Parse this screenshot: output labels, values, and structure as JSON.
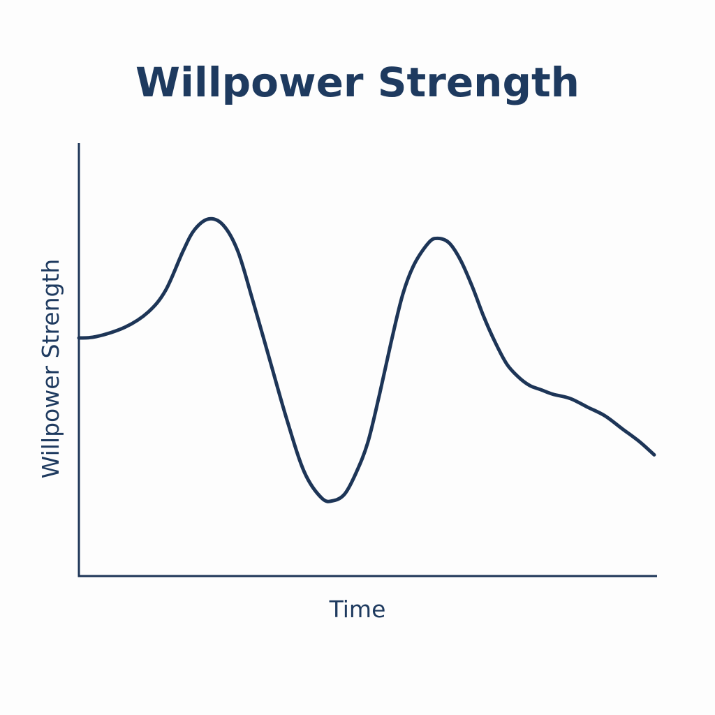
{
  "chart_data": {
    "type": "line",
    "title": "Willpower Strength",
    "xlabel": "Time",
    "ylabel": "Willpower Strength",
    "xlim": [
      0,
      100
    ],
    "ylim": [
      0,
      100
    ],
    "grid": false,
    "ticks_shown": false,
    "series": [
      {
        "x": [
          0,
          3,
          8,
          12,
          15,
          18,
          20,
          22.5,
          25,
          27.5,
          30,
          33,
          36,
          39,
          42,
          44,
          46,
          48,
          50,
          52,
          54,
          56,
          58,
          60.5,
          62,
          64,
          66,
          68,
          70,
          72,
          74,
          76,
          78,
          80,
          82,
          85,
          88,
          91,
          94,
          97,
          99.5
        ],
        "values": [
          55,
          55.3,
          57.5,
          61,
          66,
          75,
          80,
          82.5,
          81,
          75,
          64,
          50,
          36,
          24,
          18,
          17.4,
          19,
          24,
          31,
          42,
          54,
          65,
          72,
          77,
          78,
          77,
          73,
          67,
          60,
          54,
          49,
          46,
          44,
          43,
          42,
          41,
          39,
          37,
          34,
          31,
          28
        ]
      }
    ],
    "colors": {
      "line": "#1d3557",
      "axis": "#1d3557",
      "text": "#1e3a5f"
    }
  }
}
